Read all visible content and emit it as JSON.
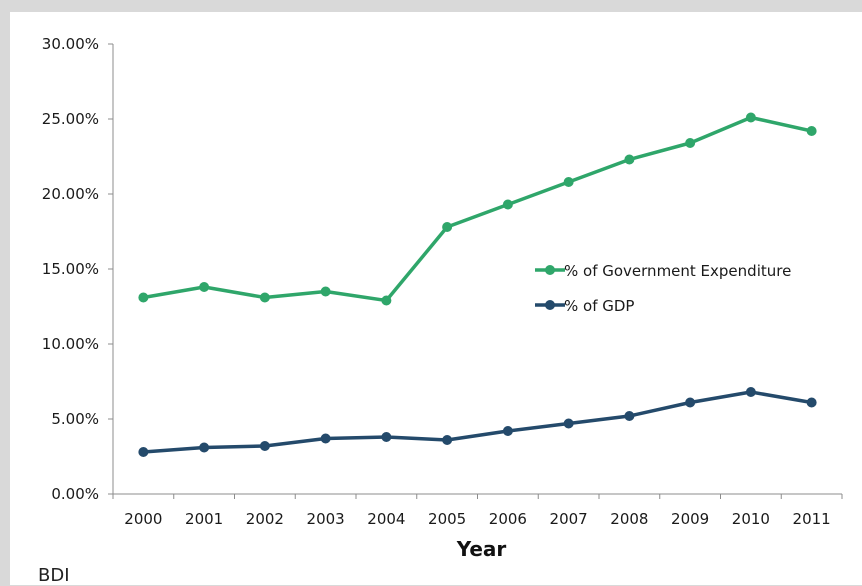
{
  "chart_data": {
    "type": "line",
    "x": [
      "2000",
      "2001",
      "2002",
      "2003",
      "2004",
      "2005",
      "2006",
      "2007",
      "2008",
      "2009",
      "2010",
      "2011"
    ],
    "series": [
      {
        "name": "% of Government Expenditure",
        "color": "#2fa66a",
        "values": [
          13.1,
          13.8,
          13.1,
          13.5,
          12.9,
          17.8,
          19.3,
          20.8,
          22.3,
          23.4,
          25.1,
          24.2
        ]
      },
      {
        "name": "% of GDP",
        "color": "#244a6b",
        "values": [
          2.8,
          3.1,
          3.2,
          3.7,
          3.8,
          3.6,
          4.2,
          4.7,
          5.2,
          6.1,
          6.8,
          6.1
        ]
      }
    ],
    "yticks": [
      "0.00%",
      "5.00%",
      "10.00%",
      "15.00%",
      "20.00%",
      "25.00%",
      "30.00%"
    ],
    "ylim": [
      0,
      30
    ],
    "xlabel": "Year",
    "ylabel": "",
    "grid": false,
    "legend_position": "center-right"
  },
  "footer_label": "BDI"
}
